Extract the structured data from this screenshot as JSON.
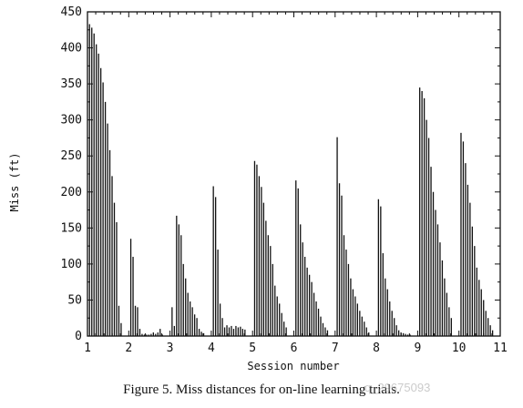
{
  "chart_data": {
    "type": "bar",
    "xlabel": "Session number",
    "ylabel": "Miss (ft)",
    "xlim": [
      1,
      11
    ],
    "ylim": [
      0,
      450
    ],
    "grid": false,
    "x_ticks": [
      "1",
      "2",
      "3",
      "4",
      "5",
      "6",
      "7",
      "8",
      "9",
      "10",
      "11"
    ],
    "y_ticks": [
      "0",
      "50",
      "100",
      "150",
      "200",
      "250",
      "300",
      "350",
      "400",
      "450"
    ],
    "sessions": [
      {
        "session": 1,
        "values": [
          433,
          428,
          420,
          405,
          392,
          372,
          352,
          325,
          295,
          258,
          222,
          185,
          158,
          42,
          18
        ]
      },
      {
        "session": 2,
        "values": [
          135,
          110,
          42,
          40,
          10,
          3,
          2,
          2,
          2,
          3,
          5,
          3,
          5,
          10,
          2
        ]
      },
      {
        "session": 3,
        "values": [
          40,
          14,
          167,
          155,
          140,
          100,
          80,
          60,
          48,
          40,
          30,
          25,
          10,
          6,
          4
        ]
      },
      {
        "session": 4,
        "values": [
          208,
          193,
          120,
          45,
          25,
          12,
          15,
          12,
          14,
          10,
          14,
          12,
          13,
          10,
          9
        ]
      },
      {
        "session": 5,
        "values": [
          243,
          238,
          222,
          207,
          185,
          160,
          140,
          125,
          100,
          70,
          55,
          45,
          32,
          20,
          12
        ]
      },
      {
        "session": 6,
        "values": [
          216,
          205,
          155,
          130,
          110,
          95,
          85,
          75,
          60,
          48,
          38,
          27,
          18,
          12,
          8
        ]
      },
      {
        "session": 7,
        "values": [
          276,
          212,
          195,
          140,
          120,
          100,
          80,
          65,
          55,
          45,
          35,
          27,
          20,
          12,
          5
        ]
      },
      {
        "session": 8,
        "values": [
          190,
          180,
          115,
          80,
          65,
          48,
          35,
          25,
          15,
          8,
          5,
          4,
          3,
          2,
          2
        ]
      },
      {
        "session": 9,
        "values": [
          345,
          340,
          330,
          300,
          275,
          235,
          200,
          175,
          155,
          130,
          105,
          80,
          60,
          40,
          25
        ]
      },
      {
        "session": 10,
        "values": [
          282,
          270,
          240,
          210,
          185,
          152,
          125,
          95,
          78,
          65,
          50,
          35,
          25,
          15,
          8
        ]
      }
    ]
  },
  "caption": "Figure 5. Miss distances for on-line learning trials.",
  "watermark": "q_29675093"
}
